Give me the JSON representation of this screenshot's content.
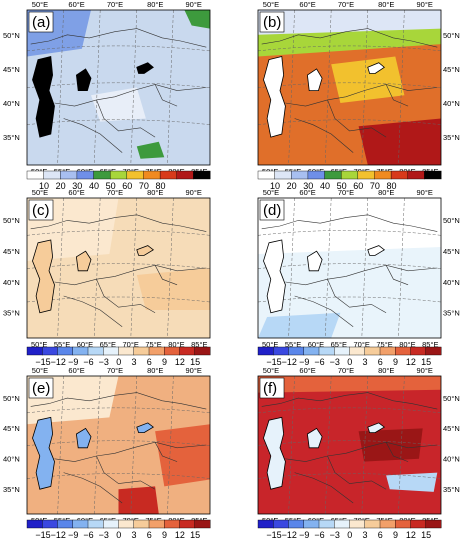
{
  "figure": {
    "top_lon_labels": [
      "50°E",
      "60°E",
      "70°E",
      "80°E",
      "90°E"
    ],
    "bottom_lon_labels": [
      "50°E",
      "55°E",
      "60°E",
      "65°E",
      "70°E",
      "75°E",
      "80°E",
      "85°E"
    ],
    "right_lat_labels": [
      "50°N",
      "45°N",
      "40°N",
      "35°N"
    ],
    "left_lat_labels": [
      "50°N",
      "45°N",
      "40°N",
      "35°N"
    ],
    "right_col_left_lat_labels": [
      "50°N",
      "45°N",
      "40°N",
      "35°N"
    ],
    "colors": {
      "lake": "#000000",
      "grid": "#666666",
      "border": "#333333"
    }
  },
  "panels": [
    {
      "id": "a",
      "label": "(a)",
      "field": "percent",
      "base": "#c9d9ee"
    },
    {
      "id": "b",
      "label": "(b)",
      "field": "percent",
      "base": "#e06f2a"
    },
    {
      "id": "c",
      "label": "(c)",
      "field": "diff",
      "base": "#f6dcb8"
    },
    {
      "id": "d",
      "label": "(d)",
      "field": "diff",
      "base": "#e9f4fb"
    },
    {
      "id": "e",
      "label": "(e)",
      "field": "diff",
      "base": "#f0b080"
    },
    {
      "id": "f",
      "label": "(f)",
      "field": "diff",
      "base": "#c8252a"
    }
  ],
  "colorbars": {
    "percent": {
      "labels": [
        "10",
        "20",
        "30",
        "40",
        "50",
        "60",
        "70",
        "80"
      ],
      "colors": [
        "#ffffff",
        "#dde6f6",
        "#a8bff0",
        "#6f8fe8",
        "#3d9a3d",
        "#a8d63a",
        "#f2c12e",
        "#f08a20",
        "#d83a1a",
        "#b01818",
        "#000000"
      ]
    },
    "diff": {
      "labels": [
        "−15",
        "−12",
        "−9",
        "−6",
        "−3",
        "0",
        "3",
        "6",
        "9",
        "12",
        "15"
      ],
      "colors": [
        "#2020c8",
        "#3a48e0",
        "#5a86ea",
        "#83b2f0",
        "#b7d8f6",
        "#e6f2fb",
        "#fbe8cf",
        "#f6cc9a",
        "#f2a06a",
        "#e4623c",
        "#c82a22",
        "#9a1616"
      ]
    }
  }
}
